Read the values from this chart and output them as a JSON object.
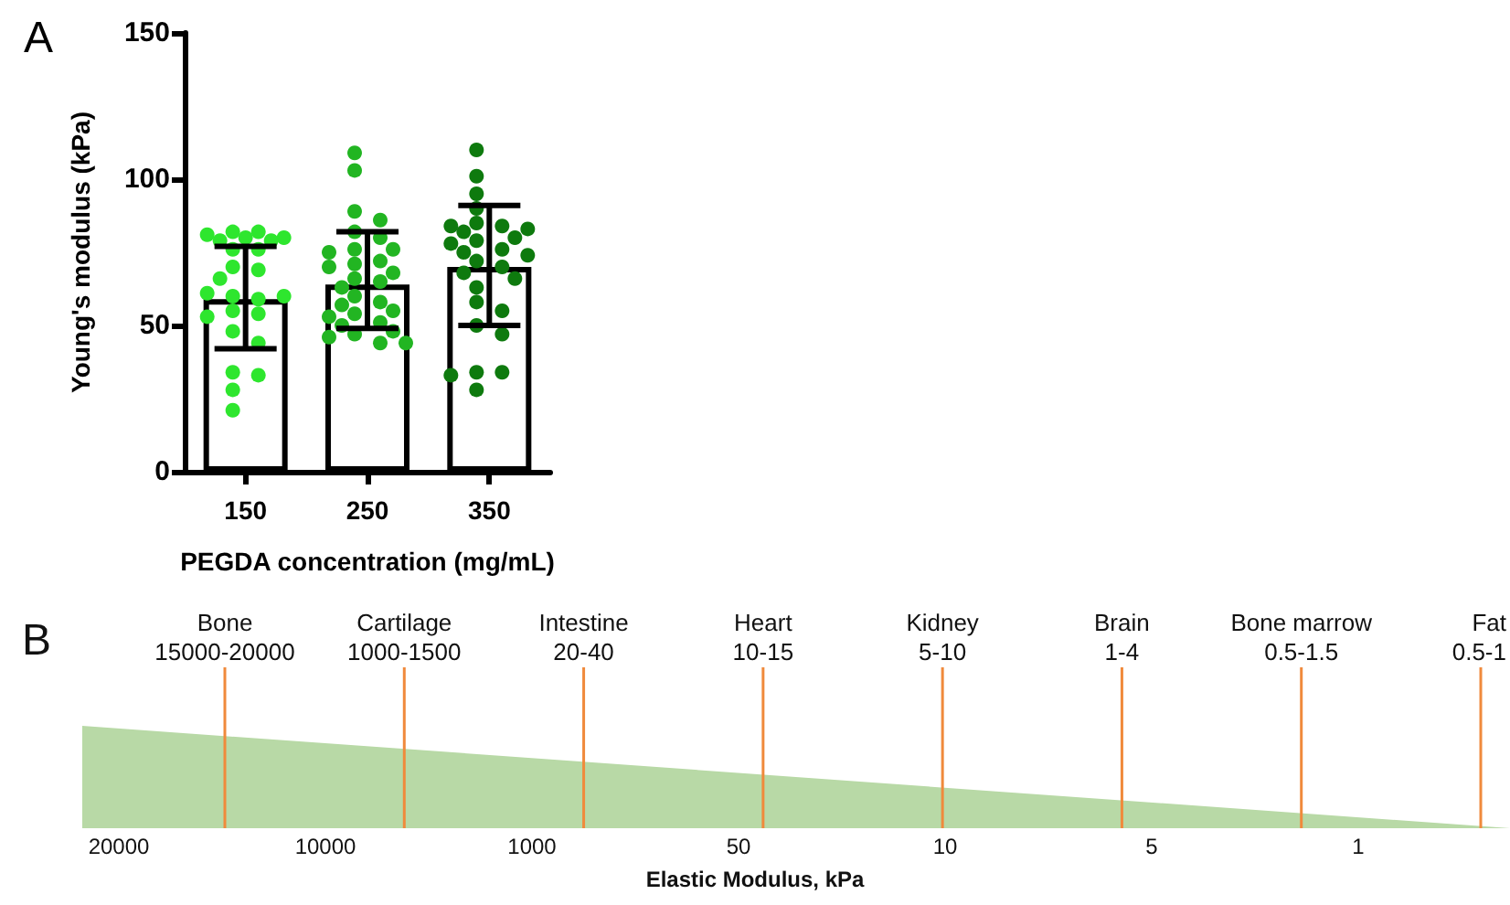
{
  "chart_data": [
    {
      "type": "bar",
      "title": "A",
      "xlabel": "PEGDA concentration (mg/mL)",
      "ylabel": "Young's modulus (kPa)",
      "categories": [
        "150",
        "250",
        "350"
      ],
      "ylim": [
        0,
        150
      ],
      "yticks": [
        0,
        50,
        100,
        150
      ],
      "series": [
        {
          "type": "bar",
          "color": "#ffffff",
          "values": [
            59,
            64,
            70
          ],
          "errors": [
            [
              42,
              77
            ],
            [
              49,
              82
            ],
            [
              50,
              91
            ]
          ]
        },
        {
          "type": "scatter",
          "color": "#2ee62e",
          "x": [
            "150",
            "150",
            "150",
            "150",
            "150",
            "150",
            "150",
            "150",
            "150",
            "150",
            "150",
            "150",
            "150",
            "150",
            "150",
            "150",
            "150",
            "150",
            "150",
            "150",
            "150",
            "150",
            "150",
            "150",
            "150"
          ],
          "values": [
            82,
            82,
            81,
            80,
            80,
            79,
            79,
            76,
            76,
            70,
            69,
            66,
            60,
            59,
            61,
            60,
            55,
            54,
            53,
            48,
            44,
            34,
            33,
            28,
            21
          ]
        },
        {
          "type": "scatter",
          "color": "#22b522",
          "x": [
            "250",
            "250",
            "250",
            "250",
            "250",
            "250",
            "250",
            "250",
            "250",
            "250",
            "250",
            "250",
            "250",
            "250",
            "250",
            "250",
            "250",
            "250",
            "250",
            "250",
            "250",
            "250",
            "250",
            "250",
            "250",
            "250",
            "250",
            "250",
            "250"
          ],
          "values": [
            109,
            103,
            89,
            86,
            82,
            80,
            76,
            76,
            75,
            72,
            71,
            70,
            68,
            66,
            65,
            63,
            60,
            58,
            57,
            55,
            54,
            53,
            51,
            50,
            48,
            47,
            46,
            44,
            44
          ]
        },
        {
          "type": "scatter",
          "color": "#0e7a0e",
          "x": [
            "350",
            "350",
            "350",
            "350",
            "350",
            "350",
            "350",
            "350",
            "350",
            "350",
            "350",
            "350",
            "350",
            "350",
            "350",
            "350",
            "350",
            "350",
            "350",
            "350",
            "350",
            "350",
            "350",
            "350",
            "350",
            "350",
            "350",
            "350"
          ],
          "values": [
            110,
            101,
            95,
            90,
            85,
            84,
            84,
            83,
            82,
            80,
            79,
            78,
            76,
            75,
            74,
            72,
            70,
            68,
            66,
            63,
            58,
            55,
            50,
            47,
            34,
            34,
            33,
            28
          ]
        }
      ]
    },
    {
      "type": "other",
      "title": "B",
      "xlabel": "Elastic Modulus, kPa",
      "categories": [
        "20000",
        "10000",
        "1000",
        "50",
        "10",
        "5",
        "1"
      ],
      "annotations": [
        "Bone\n15000-20000",
        "Cartilage\n1000-1500",
        "Intestine\n20-40",
        "Heart\n10-15",
        "Kidney\n5-10",
        "Brain\n1-4",
        "Bone marrow\n0.5-1.5",
        "Fat\n0.5-1"
      ]
    }
  ]
}
